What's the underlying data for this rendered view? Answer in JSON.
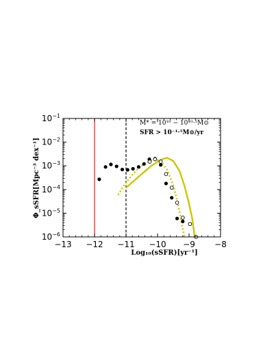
{
  "chart_data": {
    "type": "scatter",
    "xlabel": "Log₁₀(sSFR)[yr⁻¹]",
    "ylabel": "Φ_sSFR[Mpc⁻³ dex⁻¹]",
    "xlim": [
      -13,
      -8
    ],
    "ylim_log10": [
      -6,
      -1
    ],
    "y_scale": "log",
    "grid": false,
    "xticks": [
      -13,
      -12,
      -11,
      -10,
      -9,
      -8
    ],
    "xtick_labels": [
      "−13",
      "−12",
      "−11",
      "−10",
      "−9",
      "−8"
    ],
    "yticks_log10": [
      -6,
      -5,
      -4,
      -3,
      -2,
      -1
    ],
    "ytick_base": "10",
    "ytick_exponents": [
      "−6",
      "−5",
      "−4",
      "−3",
      "−2",
      "−1"
    ],
    "annotations": [
      "M* = 10¹⁰ − 10¹⁰·⁵M⊙",
      "SFR > 10⁻¹·⁵M⊙/yr"
    ],
    "vlines": [
      {
        "x": -12,
        "color": "#d62728",
        "style": "solid"
      },
      {
        "x": -11,
        "color": "#000000",
        "style": "dashed"
      }
    ],
    "series": [
      {
        "kind": "filled-circles",
        "color": "#000000",
        "points": [
          {
            "x": -11.85,
            "y": 0.00027
          },
          {
            "x": -11.65,
            "y": 0.0009
          },
          {
            "x": -11.48,
            "y": 0.00115
          },
          {
            "x": -11.3,
            "y": 0.00095
          },
          {
            "x": -11.12,
            "y": 0.0007
          },
          {
            "x": -10.95,
            "y": 0.00068
          },
          {
            "x": -10.78,
            "y": 0.00075
          },
          {
            "x": -10.6,
            "y": 0.0009
          },
          {
            "x": -10.43,
            "y": 0.0012
          },
          {
            "x": -10.26,
            "y": 0.0019
          },
          {
            "x": -10.08,
            "y": 0.002
          },
          {
            "x": -9.9,
            "y": 0.0011
          },
          {
            "x": -9.73,
            "y": 0.00018
          },
          {
            "x": -9.55,
            "y": 4.5e-05
          },
          {
            "x": -9.38,
            "y": 6e-06
          },
          {
            "x": -9.2,
            "y": 4.5e-06
          }
        ]
      },
      {
        "kind": "open-circles",
        "color": "#000000",
        "points": [
          {
            "x": -10.25,
            "y": 0.0015
          },
          {
            "x": -10.08,
            "y": 0.0019
          },
          {
            "x": -9.9,
            "y": 0.0015
          },
          {
            "x": -9.73,
            "y": 0.00045
          },
          {
            "x": -9.55,
            "y": 0.00012
          },
          {
            "x": -9.38,
            "y": 2.8e-05
          },
          {
            "x": -9.2,
            "y": 6.5e-06
          },
          {
            "x": -8.97,
            "y": 3.5e-06
          },
          {
            "x": -8.78,
            "y": 1e-06
          }
        ]
      },
      {
        "kind": "solid-line",
        "color": "#c8c800",
        "points": [
          {
            "x": -11.0,
            "y": 0.00012
          },
          {
            "x": -10.6,
            "y": 0.00035
          },
          {
            "x": -10.2,
            "y": 0.001
          },
          {
            "x": -9.9,
            "y": 0.0018
          },
          {
            "x": -9.7,
            "y": 0.0022
          },
          {
            "x": -9.5,
            "y": 0.0016
          },
          {
            "x": -9.3,
            "y": 0.0006
          },
          {
            "x": -9.15,
            "y": 0.00015
          },
          {
            "x": -9.0,
            "y": 2.5e-05
          },
          {
            "x": -8.9,
            "y": 6e-06
          },
          {
            "x": -8.82,
            "y": 1e-06
          }
        ]
      },
      {
        "kind": "dotted-line",
        "color": "#c8c800",
        "points": [
          {
            "x": -11.25,
            "y": 6e-05
          },
          {
            "x": -11.0,
            "y": 0.0002
          },
          {
            "x": -10.7,
            "y": 0.0006
          },
          {
            "x": -10.4,
            "y": 0.0013
          },
          {
            "x": -10.1,
            "y": 0.0019
          },
          {
            "x": -9.9,
            "y": 0.0016
          },
          {
            "x": -9.7,
            "y": 0.0007
          },
          {
            "x": -9.5,
            "y": 0.00015
          },
          {
            "x": -9.35,
            "y": 2.5e-05
          },
          {
            "x": -9.22,
            "y": 3e-06
          },
          {
            "x": -9.15,
            "y": 1e-06
          }
        ]
      }
    ]
  }
}
